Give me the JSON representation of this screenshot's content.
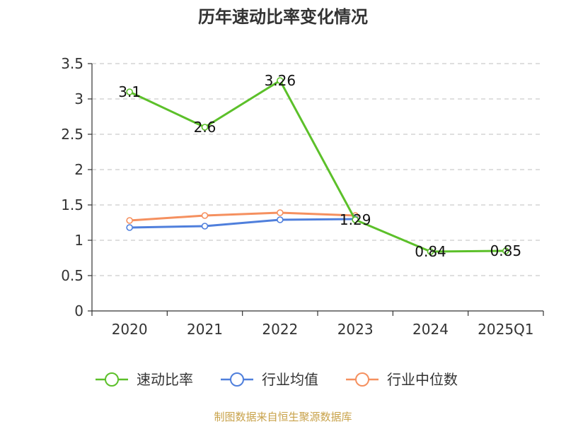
{
  "chart_data": {
    "type": "line",
    "title": "历年速动比率变化情况",
    "categories": [
      "2020",
      "2021",
      "2022",
      "2023",
      "2024",
      "2025Q1"
    ],
    "ylim": [
      0,
      3.5
    ],
    "yticks": [
      "0",
      "0.5",
      "1",
      "1.5",
      "2",
      "2.5",
      "3",
      "3.5"
    ],
    "grid": true,
    "legend_position": "bottom",
    "series": [
      {
        "name": "速动比率",
        "color": "#5cc02a",
        "values": [
          3.1,
          2.6,
          3.26,
          1.29,
          0.84,
          0.85
        ],
        "labels": [
          "3.1",
          "2.6",
          "3.26",
          "1.29",
          "0.84",
          "0.85"
        ]
      },
      {
        "name": "行业均值",
        "color": "#4f7fdc",
        "values": [
          1.18,
          1.2,
          1.29,
          1.3,
          null,
          null
        ]
      },
      {
        "name": "行业中位数",
        "color": "#f5905f",
        "values": [
          1.28,
          1.35,
          1.39,
          1.35,
          null,
          null
        ]
      }
    ],
    "source": "制图数据来自恒生聚源数据库",
    "source_color": "#c8a24a"
  }
}
